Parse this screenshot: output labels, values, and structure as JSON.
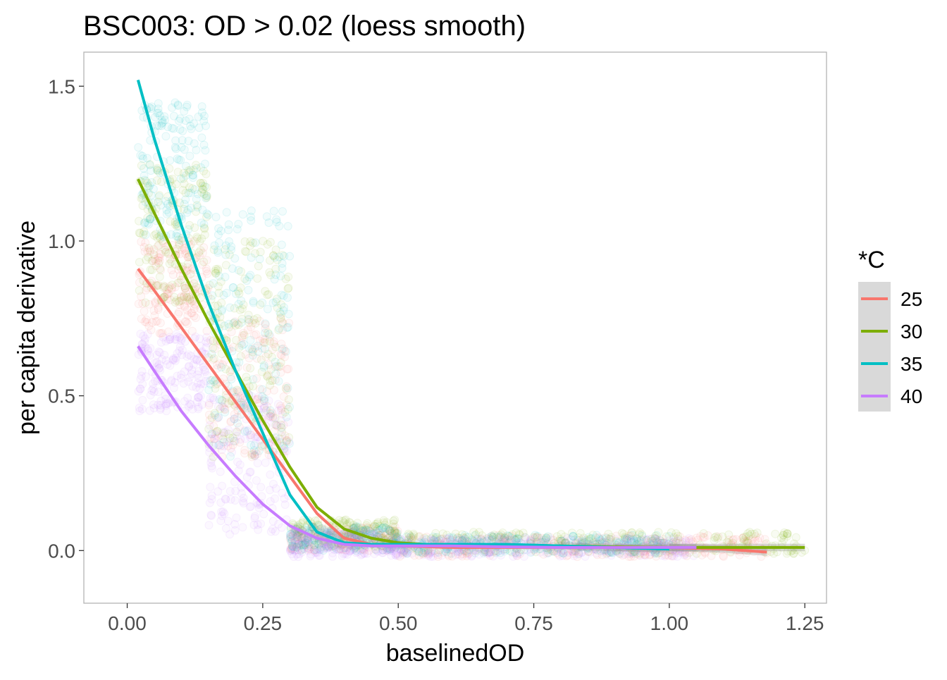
{
  "chart_data": {
    "type": "scatter",
    "title": "BSC003: OD > 0.02 (loess smooth)",
    "xlabel": "baselinedOD",
    "ylabel": "per capita derivative",
    "xlim": [
      -0.08,
      1.29
    ],
    "ylim": [
      -0.17,
      1.61
    ],
    "x_ticks": [
      0.0,
      0.25,
      0.5,
      0.75,
      1.0,
      1.25
    ],
    "x_tick_labels": [
      "0.00",
      "0.25",
      "0.50",
      "0.75",
      "1.00",
      "1.25"
    ],
    "y_ticks": [
      0.0,
      0.5,
      1.0,
      1.5
    ],
    "y_tick_labels": [
      "0.0",
      "0.5",
      "1.0",
      "1.5"
    ],
    "grid": false,
    "legend": {
      "title": "*C",
      "position": "right"
    },
    "series": [
      {
        "name": "25",
        "color": "#F8766D",
        "smooth": {
          "x": [
            0.02,
            0.05,
            0.1,
            0.15,
            0.2,
            0.25,
            0.3,
            0.35,
            0.4,
            0.45,
            0.5,
            0.6,
            0.7,
            0.8,
            0.9,
            1.0,
            1.1,
            1.18
          ],
          "y": [
            0.91,
            0.84,
            0.72,
            0.6,
            0.48,
            0.36,
            0.24,
            0.12,
            0.04,
            0.02,
            0.015,
            0.01,
            0.01,
            0.01,
            0.01,
            0.01,
            0.005,
            -0.005
          ]
        },
        "cloud": [
          {
            "x": [
              0.02,
              0.15
            ],
            "y": [
              0.7,
              1.0
            ]
          },
          {
            "x": [
              0.15,
              0.3
            ],
            "y": [
              0.3,
              0.75
            ]
          },
          {
            "x": [
              0.3,
              0.5
            ],
            "y": [
              0.0,
              0.08
            ]
          },
          {
            "x": [
              0.5,
              1.18
            ],
            "y": [
              -0.02,
              0.05
            ]
          }
        ]
      },
      {
        "name": "30",
        "color": "#7CAE00",
        "smooth": {
          "x": [
            0.02,
            0.05,
            0.1,
            0.15,
            0.2,
            0.25,
            0.3,
            0.35,
            0.4,
            0.45,
            0.5,
            0.6,
            0.7,
            0.8,
            0.9,
            1.0,
            1.1,
            1.25
          ],
          "y": [
            1.2,
            1.09,
            0.91,
            0.74,
            0.58,
            0.42,
            0.27,
            0.14,
            0.07,
            0.04,
            0.025,
            0.015,
            0.015,
            0.015,
            0.012,
            0.01,
            0.01,
            0.01
          ]
        },
        "cloud": [
          {
            "x": [
              0.02,
              0.15
            ],
            "y": [
              0.8,
              1.25
            ]
          },
          {
            "x": [
              0.15,
              0.3
            ],
            "y": [
              0.3,
              1.0
            ]
          },
          {
            "x": [
              0.3,
              0.5
            ],
            "y": [
              0.01,
              0.1
            ]
          },
          {
            "x": [
              0.5,
              1.25
            ],
            "y": [
              -0.01,
              0.06
            ]
          }
        ]
      },
      {
        "name": "35",
        "color": "#00BFC4",
        "smooth": {
          "x": [
            0.02,
            0.05,
            0.1,
            0.15,
            0.2,
            0.25,
            0.3,
            0.35,
            0.4,
            0.45,
            0.5,
            0.6,
            0.7,
            0.8,
            0.9,
            1.0
          ],
          "y": [
            1.52,
            1.33,
            1.05,
            0.8,
            0.58,
            0.38,
            0.18,
            0.06,
            0.025,
            0.02,
            0.02,
            0.02,
            0.02,
            0.015,
            0.01,
            0.005
          ]
        },
        "cloud": [
          {
            "x": [
              0.02,
              0.15
            ],
            "y": [
              1.0,
              1.45
            ]
          },
          {
            "x": [
              0.15,
              0.3
            ],
            "y": [
              0.3,
              1.1
            ]
          },
          {
            "x": [
              0.3,
              0.5
            ],
            "y": [
              0.0,
              0.08
            ]
          },
          {
            "x": [
              0.5,
              1.0
            ],
            "y": [
              -0.01,
              0.05
            ]
          }
        ]
      },
      {
        "name": "40",
        "color": "#C77CFF",
        "smooth": {
          "x": [
            0.02,
            0.05,
            0.1,
            0.15,
            0.2,
            0.25,
            0.3,
            0.35,
            0.4,
            0.45,
            0.5,
            0.6,
            0.7,
            0.8,
            0.9,
            1.0,
            1.05
          ],
          "y": [
            0.66,
            0.58,
            0.45,
            0.34,
            0.24,
            0.15,
            0.08,
            0.04,
            0.02,
            0.015,
            0.015,
            0.015,
            0.012,
            0.01,
            0.01,
            0.01,
            0.01
          ]
        },
        "cloud": [
          {
            "x": [
              0.02,
              0.15
            ],
            "y": [
              0.45,
              0.7
            ]
          },
          {
            "x": [
              0.15,
              0.3
            ],
            "y": [
              0.05,
              0.5
            ]
          },
          {
            "x": [
              0.3,
              0.5
            ],
            "y": [
              -0.02,
              0.06
            ]
          },
          {
            "x": [
              0.5,
              1.05
            ],
            "y": [
              -0.02,
              0.04
            ]
          }
        ]
      }
    ]
  }
}
